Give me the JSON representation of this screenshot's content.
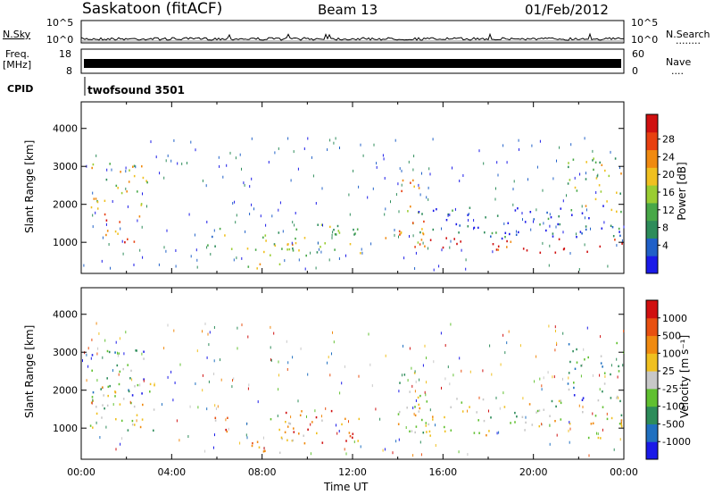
{
  "header": {
    "station": "Saskatoon (fitACF)",
    "beam": "Beam 13",
    "date": "01/Feb/2012"
  },
  "side_labels": {
    "nsky": "N.Sky",
    "nsearch": "N.Search",
    "nsearch_marker": "........",
    "freq_line1": "Freq.",
    "freq_line2": "[MHz]",
    "nave": "Nave",
    "nave_marker": "....",
    "cpid": "CPID"
  },
  "noise_axis": {
    "ticks_left": [
      "10^5",
      "10^0"
    ],
    "ticks_right": [
      "10^5",
      "10^0"
    ]
  },
  "freq_axis": {
    "ticks_left": [
      "18",
      "8"
    ],
    "ticks_right": [
      "60",
      "0"
    ]
  },
  "cpid_label": "twofsound 3501",
  "time_axis": {
    "label": "Time UT",
    "ticks": [
      "00:00",
      "04:00",
      "08:00",
      "12:00",
      "16:00",
      "20:00",
      "00:00"
    ]
  },
  "chart_data": [
    {
      "type": "heatmap",
      "name": "power",
      "ylabel": "Slant Range [km]",
      "yticks": [
        1000,
        2000,
        3000,
        4000
      ],
      "ylim": [
        180,
        4700
      ],
      "xlim_hours": [
        0,
        24
      ],
      "colorbar": {
        "label": "Power [dB]",
        "ticks": [
          "4",
          "8",
          "12",
          "16",
          "20",
          "24",
          "28"
        ],
        "colors": [
          "#1a1ae8",
          "#2060c8",
          "#2d8c5a",
          "#48a848",
          "#9acd32",
          "#f0c020",
          "#f08a10",
          "#e84010",
          "#d01010"
        ]
      },
      "regions": [
        {
          "t0": 0.4,
          "t1": 2.9,
          "r0": 1800,
          "r1": 3100,
          "level": 0.55
        },
        {
          "t0": 1.0,
          "t1": 2.6,
          "r0": 1000,
          "r1": 1800,
          "level": 0.85
        },
        {
          "t0": 5.5,
          "t1": 6.7,
          "r0": 800,
          "r1": 1400,
          "level": 0.4
        },
        {
          "t0": 7.3,
          "t1": 9.4,
          "r0": 300,
          "r1": 1300,
          "level": 0.55
        },
        {
          "t0": 9.0,
          "t1": 12.5,
          "r0": 600,
          "r1": 1500,
          "level": 0.45
        },
        {
          "t0": 13.4,
          "t1": 14.2,
          "r0": 900,
          "r1": 1400,
          "level": 0.6
        },
        {
          "t0": 14.0,
          "t1": 15.3,
          "r0": 900,
          "r1": 2700,
          "level": 0.7
        },
        {
          "t0": 14.8,
          "t1": 24.0,
          "r0": 750,
          "r1": 1150,
          "level": 0.95
        },
        {
          "t0": 14.8,
          "t1": 24.0,
          "r0": 1100,
          "r1": 2000,
          "level": 0.15
        },
        {
          "t0": 21.5,
          "t1": 23.9,
          "r0": 1700,
          "r1": 3300,
          "level": 0.5
        }
      ]
    },
    {
      "type": "heatmap",
      "name": "velocity",
      "ylabel": "Slant Range [km]",
      "yticks": [
        1000,
        2000,
        3000,
        4000
      ],
      "ylim": [
        180,
        4700
      ],
      "xlim_hours": [
        0,
        24
      ],
      "colorbar": {
        "label": "Velocity [m s⁻¹]",
        "ticks": [
          "1000",
          "500",
          "100",
          "25",
          "-25",
          "-100",
          "-500",
          "-1000"
        ],
        "colors": [
          "#1a1ae8",
          "#2070c0",
          "#2d8c5a",
          "#60c030",
          "#c8c8c8",
          "#f0c020",
          "#f08a10",
          "#e85010",
          "#d01010"
        ]
      },
      "regions": [
        {
          "t0": 0.4,
          "t1": 2.9,
          "r0": 1800,
          "r1": 3100,
          "level": 0.3
        },
        {
          "t0": 0.3,
          "t1": 3.3,
          "r0": 900,
          "r1": 2200,
          "level": 0.5
        },
        {
          "t0": 5.5,
          "t1": 6.7,
          "r0": 800,
          "r1": 1400,
          "level": 0.7
        },
        {
          "t0": 7.3,
          "t1": 9.4,
          "r0": 300,
          "r1": 1300,
          "level": 0.65
        },
        {
          "t0": 9.0,
          "t1": 12.5,
          "r0": 600,
          "r1": 1500,
          "level": 0.75
        },
        {
          "t0": 14.0,
          "t1": 15.3,
          "r0": 900,
          "r1": 2700,
          "level": 0.5
        },
        {
          "t0": 14.8,
          "t1": 24.0,
          "r0": 750,
          "r1": 1800,
          "level": 0.5
        },
        {
          "t0": 21.5,
          "t1": 23.9,
          "r0": 1700,
          "r1": 3300,
          "level": 0.3
        }
      ]
    }
  ]
}
